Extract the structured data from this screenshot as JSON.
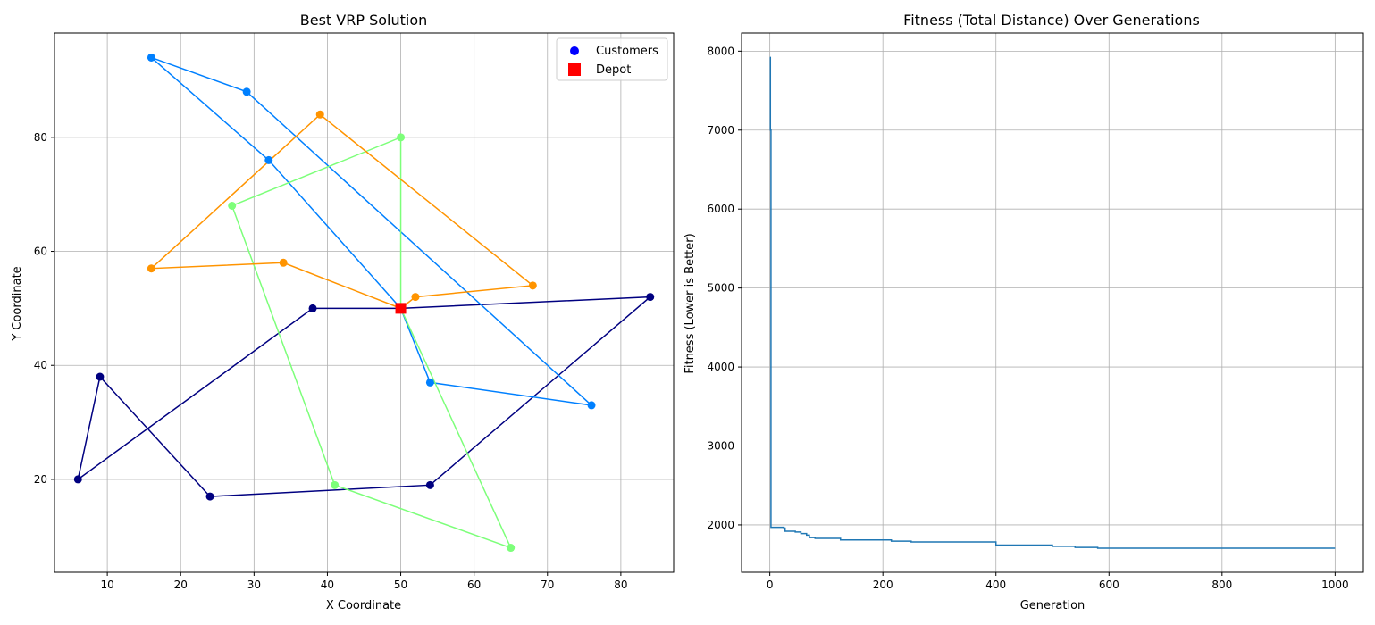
{
  "chart_data": [
    {
      "type": "scatter",
      "title": "Best VRP Solution",
      "xlabel": "X Coordinate",
      "ylabel": "Y Coordinate",
      "xlim": [
        2.8,
        87.2
      ],
      "ylim": [
        3.7,
        98.3
      ],
      "xticks": [
        10,
        20,
        30,
        40,
        50,
        60,
        70,
        80
      ],
      "yticks": [
        20,
        40,
        60,
        80
      ],
      "grid": true,
      "legend": {
        "placement": "top-right",
        "entries": [
          {
            "label": "Customers",
            "marker": "circle",
            "color": "#0000ff"
          },
          {
            "label": "Depot",
            "marker": "square",
            "color": "#ff0000"
          }
        ]
      },
      "depot": {
        "x": 50,
        "y": 50
      },
      "routes": [
        {
          "color": "#000080",
          "points": [
            [
              50,
              50
            ],
            [
              84,
              52
            ],
            [
              54,
              19
            ],
            [
              24,
              17
            ],
            [
              9,
              38
            ],
            [
              6,
              20
            ],
            [
              38,
              50
            ],
            [
              50,
              50
            ]
          ]
        },
        {
          "color": "#0080ff",
          "points": [
            [
              50,
              50
            ],
            [
              32,
              76
            ],
            [
              16,
              94
            ],
            [
              29,
              88
            ],
            [
              76,
              33
            ],
            [
              54,
              37
            ],
            [
              50,
              50
            ]
          ]
        },
        {
          "color": "#7dff7a",
          "points": [
            [
              50,
              50
            ],
            [
              50,
              80
            ],
            [
              27,
              68
            ],
            [
              41,
              19
            ],
            [
              65,
              8
            ],
            [
              50,
              50
            ]
          ]
        },
        {
          "color": "#ff9400",
          "points": [
            [
              50,
              50
            ],
            [
              34,
              58
            ],
            [
              16,
              57
            ],
            [
              39,
              84
            ],
            [
              68,
              54
            ],
            [
              52,
              52
            ],
            [
              50,
              50
            ]
          ]
        }
      ]
    },
    {
      "type": "line",
      "title": "Fitness (Total Distance) Over Generations",
      "xlabel": "Generation",
      "ylabel": "Fitness (Lower is Better)",
      "xlim": [
        -50,
        1050
      ],
      "ylim": [
        1400,
        8230
      ],
      "xticks": [
        0,
        200,
        400,
        600,
        800,
        1000
      ],
      "yticks": [
        2000,
        3000,
        4000,
        5000,
        6000,
        7000,
        8000
      ],
      "grid": true,
      "series": [
        {
          "color": "#1f77b4",
          "step": true,
          "points": [
            [
              0,
              7920
            ],
            [
              1,
              7000
            ],
            [
              2,
              1970
            ],
            [
              25,
              1960
            ],
            [
              27,
              1920
            ],
            [
              45,
              1910
            ],
            [
              55,
              1890
            ],
            [
              65,
              1870
            ],
            [
              70,
              1840
            ],
            [
              80,
              1830
            ],
            [
              125,
              1810
            ],
            [
              215,
              1795
            ],
            [
              250,
              1785
            ],
            [
              400,
              1745
            ],
            [
              500,
              1730
            ],
            [
              540,
              1715
            ],
            [
              580,
              1705
            ],
            [
              1000,
              1705
            ]
          ]
        }
      ]
    }
  ]
}
